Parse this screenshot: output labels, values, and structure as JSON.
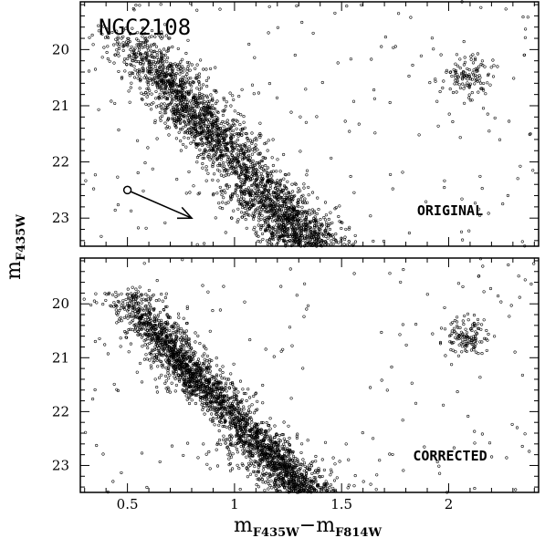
{
  "chart_data": {
    "type": "scatter",
    "xlabel_main": "m",
    "xlabel_sub1": "F435W",
    "xlabel_minus": "−m",
    "xlabel_sub2": "F814W",
    "ylabel_main": "m",
    "ylabel_sub": "F435W",
    "xlim": [
      0.28,
      2.42
    ],
    "x_ticks": [
      0.5,
      1,
      1.5,
      2
    ],
    "x_tick_labels": [
      "0.5",
      "1",
      "1.5",
      "2"
    ],
    "panels": [
      {
        "label": "ORIGINAL",
        "cluster_label": "NGC2108",
        "ylim": [
          23.5,
          19.15
        ],
        "y_ticks": [
          20,
          21,
          22,
          23
        ],
        "y_tick_labels": [
          "20",
          "21",
          "22",
          "23"
        ],
        "reddening_vector": {
          "x": [
            0.5,
            0.8
          ],
          "y": [
            22.5,
            23.0
          ]
        },
        "components": {
          "main_sequence": {
            "x0": 0.57,
            "y0": 20.1,
            "x1": 1.35,
            "y1": 23.5,
            "n": 1800,
            "spread": 0.045
          },
          "upper_ms_blue": {
            "x0": 0.5,
            "y0": 19.7,
            "x1": 0.9,
            "y1": 21.6,
            "n": 600,
            "spread": 0.06
          },
          "field": {
            "n": 180
          },
          "red_clump": {
            "x": 2.09,
            "y": 20.45,
            "sx": 0.06,
            "sy": 0.18,
            "n": 120
          }
        }
      },
      {
        "label": "CORRECTED",
        "ylim": [
          23.5,
          19.15
        ],
        "y_ticks": [
          20,
          21,
          22,
          23
        ],
        "y_tick_labels": [
          "20",
          "21",
          "22",
          "23"
        ],
        "components": {
          "main_sequence": {
            "x0": 0.55,
            "y0": 20.2,
            "x1": 1.32,
            "y1": 23.5,
            "n": 1800,
            "spread": 0.03
          },
          "upper_ms_blue": {
            "x0": 0.5,
            "y0": 19.8,
            "x1": 0.85,
            "y1": 21.7,
            "n": 650,
            "spread": 0.045
          },
          "field": {
            "n": 160
          },
          "red_clump": {
            "x": 2.09,
            "y": 20.6,
            "sx": 0.05,
            "sy": 0.17,
            "n": 120
          }
        }
      }
    ]
  }
}
